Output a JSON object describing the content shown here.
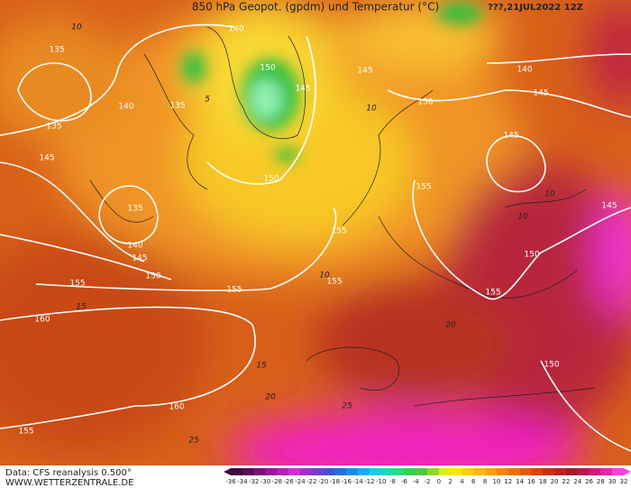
{
  "header": {
    "title": "850 hPa Geopot. (gpdm) und Temperatur (°C)",
    "date": "???,21JUL2022 12Z"
  },
  "map": {
    "geopotential_labels": [
      135,
      135,
      140,
      135,
      140,
      150,
      145,
      145,
      140,
      145,
      150,
      145,
      145,
      150,
      155,
      145,
      135,
      140,
      145,
      150,
      155,
      155,
      155,
      155,
      150,
      155,
      160,
      150,
      160,
      155
    ],
    "temperature_labels": [
      10,
      5,
      10,
      10,
      10,
      15,
      15,
      20,
      20,
      25,
      25,
      10
    ]
  },
  "footer": {
    "source": "Data: CFS reanalysis 0.500°",
    "site": "WWW.WETTERZENTRALE.DE"
  },
  "colorbar": {
    "ticks": [
      -36,
      -34,
      -32,
      -30,
      -28,
      -26,
      -24,
      -22,
      -20,
      -18,
      -16,
      -14,
      -12,
      -10,
      -8,
      -6,
      -4,
      -2,
      0,
      2,
      4,
      6,
      8,
      10,
      12,
      14,
      16,
      18,
      20,
      22,
      24,
      26,
      28,
      30,
      32
    ],
    "colors": [
      "#3c0a3c",
      "#5a0c5a",
      "#7a107a",
      "#9a189a",
      "#b820b8",
      "#d030d0",
      "#a030c8",
      "#7040c8",
      "#4050d0",
      "#2070e0",
      "#1090e8",
      "#10b0f0",
      "#10d0e0",
      "#10e0b0",
      "#20e080",
      "#30d050",
      "#50c840",
      "#90d820",
      "#e0f000",
      "#ffe800",
      "#ffd000",
      "#ffb800",
      "#ffa000",
      "#f88800",
      "#f07000",
      "#e85800",
      "#e04000",
      "#d02c10",
      "#c02020",
      "#a81828",
      "#b81848",
      "#d81878",
      "#f020b0",
      "#ff40e0"
    ]
  }
}
